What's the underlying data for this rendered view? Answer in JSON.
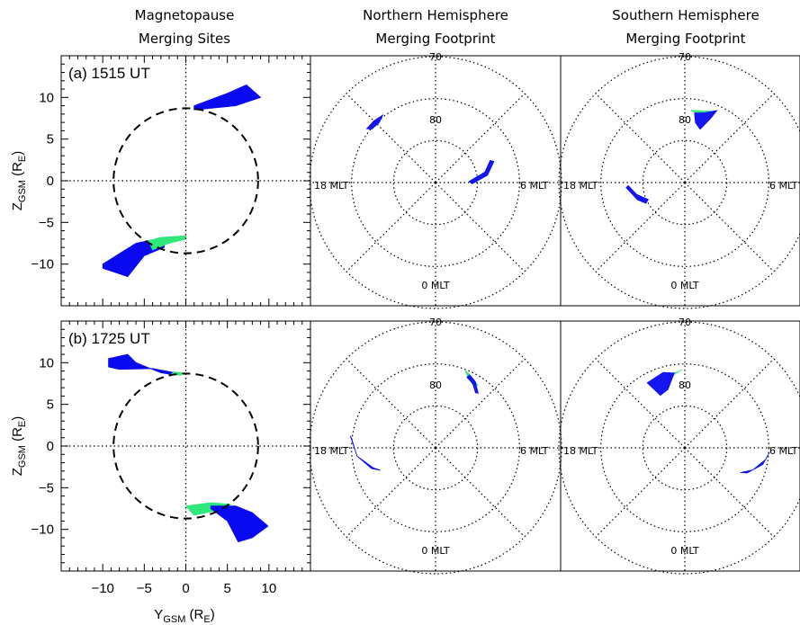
{
  "headers": {
    "col1": [
      "Magnetopause",
      "Merging Sites"
    ],
    "col2": [
      "Northern Hemisphere",
      "Merging Footprint"
    ],
    "col3": [
      "Southern Hemisphere",
      "Merging Footprint"
    ]
  },
  "axes": {
    "xlabel": {
      "main": "Y",
      "sub": "GSM",
      "unit_open": " (R",
      "unit_sub": "E",
      "unit_close": ")"
    },
    "ylabel": {
      "main": "Z",
      "sub": "GSM",
      "unit_open": " (R",
      "unit_sub": "E",
      "unit_close": ")"
    },
    "xticks": [
      -10,
      -5,
      0,
      5,
      10
    ],
    "yticks": [
      10,
      5,
      0,
      -5,
      -10
    ],
    "xlim": [
      -15,
      15
    ],
    "ylim": [
      -15,
      15
    ]
  },
  "polar_labels": {
    "rings": [
      "70",
      "80"
    ],
    "mlt": [
      "18 MLT",
      "6 MLT",
      "0 MLT"
    ]
  },
  "colors": {
    "merging_blue": "#0a0af0",
    "merging_green": "#2ee87a",
    "axis": "#000000"
  },
  "chart_data": [
    {
      "type": "scatter",
      "panel": "(a) 1515 UT",
      "title": "Magnetopause Merging Sites",
      "xlabel": "Y_GSM (R_E)",
      "ylabel": "Z_GSM (R_E)",
      "xlim": [
        -15,
        15
      ],
      "ylim": [
        -15,
        15
      ],
      "magnetopause_circle_radius": 8.7,
      "regions": [
        {
          "color": "blue",
          "polygon": [
            [
              1,
              9
            ],
            [
              5,
              10.5
            ],
            [
              7.3,
              11.5
            ],
            [
              9,
              10
            ],
            [
              6,
              9
            ],
            [
              1,
              8.5
            ]
          ]
        },
        {
          "color": "blue",
          "polygon": [
            [
              -10,
              -10
            ],
            [
              -6,
              -7.5
            ],
            [
              -2.6,
              -6.8
            ],
            [
              -2.6,
              -8.0
            ],
            [
              -5,
              -9
            ],
            [
              -7,
              -11.5
            ],
            [
              -10,
              -10.5
            ]
          ]
        },
        {
          "color": "green",
          "polygon": [
            [
              -4.5,
              -7.2
            ],
            [
              -3,
              -6.8
            ],
            [
              0,
              -6.6
            ],
            [
              0,
              -7.0
            ],
            [
              -2,
              -7.5
            ],
            [
              -4,
              -8.3
            ]
          ]
        }
      ]
    },
    {
      "type": "scatter",
      "panel": "Northern Hemisphere 1515 UT",
      "title": "Northern Hemisphere Merging Footprint",
      "rlim_deg": [
        60,
        90
      ],
      "regions": [
        {
          "color": "blue",
          "polygon": [
            [
              -52,
              69.2
            ],
            [
              -45,
              69.2
            ],
            [
              -38,
              69.6
            ],
            [
              -43,
              70.4
            ],
            [
              -50,
              70.2
            ]
          ]
        },
        {
          "color": "blue",
          "polygon": [
            [
              68,
              76
            ],
            [
              78,
              78
            ],
            [
              88,
              82
            ],
            [
              92,
              81.3
            ],
            [
              82,
              77.5
            ],
            [
              70,
              75.2
            ]
          ]
        }
      ]
    },
    {
      "type": "scatter",
      "panel": "Southern Hemisphere 1515 UT",
      "title": "Southern Hemisphere Merging Footprint",
      "rlim_deg": [
        60,
        90
      ],
      "regions": [
        {
          "color": "green",
          "polygon": [
            [
              5,
              72.7
            ],
            [
              12,
              72.5
            ],
            [
              20,
              71.9
            ],
            [
              17,
              72.7
            ],
            [
              10,
              73.3
            ]
          ]
        },
        {
          "color": "blue",
          "polygon": [
            [
              8,
              73.3
            ],
            [
              16,
              72.7
            ],
            [
              24,
              71.2
            ],
            [
              22,
              73.5
            ],
            [
              16,
              76.8
            ],
            [
              10,
              75.5
            ]
          ]
        },
        {
          "color": "blue",
          "polygon": [
            [
              -95,
              76
            ],
            [
              -110,
              78
            ],
            [
              -118,
              79.5
            ],
            [
              -115,
              80.4
            ],
            [
              -104,
              78.2
            ],
            [
              -93,
              76.5
            ]
          ]
        }
      ]
    },
    {
      "type": "scatter",
      "panel": "(b) 1725 UT",
      "title": "Magnetopause Merging Sites",
      "xlabel": "Y_GSM (R_E)",
      "ylabel": "Z_GSM (R_E)",
      "xlim": [
        -15,
        15
      ],
      "ylim": [
        -15,
        15
      ],
      "magnetopause_circle_radius": 8.7,
      "regions": [
        {
          "color": "blue",
          "polygon": [
            [
              -9.3,
              10.5
            ],
            [
              -7,
              11
            ],
            [
              -6,
              10
            ],
            [
              -3,
              8.8
            ],
            [
              -1.3,
              8.5
            ],
            [
              -1.3,
              8.8
            ],
            [
              -4,
              9.3
            ],
            [
              -8,
              9.2
            ],
            [
              -9.3,
              9.5
            ]
          ]
        },
        {
          "color": "green",
          "polygon": [
            [
              -1.8,
              8.6
            ],
            [
              -0.6,
              8.5
            ],
            [
              -0.4,
              8.8
            ],
            [
              -1.4,
              8.9
            ]
          ]
        },
        {
          "color": "green",
          "polygon": [
            [
              0,
              -7.2
            ],
            [
              3,
              -6.8
            ],
            [
              5.5,
              -7.0
            ],
            [
              3.5,
              -7.8
            ],
            [
              1,
              -8.3
            ]
          ]
        },
        {
          "color": "blue",
          "polygon": [
            [
              3,
              -7.2
            ],
            [
              6,
              -7.2
            ],
            [
              8,
              -8
            ],
            [
              9.9,
              -9.6
            ],
            [
              8,
              -11
            ],
            [
              6.3,
              -11.5
            ],
            [
              5,
              -9
            ],
            [
              3,
              -7.5
            ]
          ]
        }
      ]
    },
    {
      "type": "scatter",
      "panel": "Northern Hemisphere 1725 UT",
      "title": "Northern Hemisphere Merging Footprint",
      "rlim_deg": [
        60,
        90
      ],
      "regions": [
        {
          "color": "green",
          "polygon": [
            [
              21,
              70.2
            ],
            [
              28,
              71.2
            ],
            [
              34,
              72
            ],
            [
              30,
              72.4
            ],
            [
              24,
              71.4
            ]
          ]
        },
        {
          "color": "blue",
          "polygon": [
            [
              24,
              71.6
            ],
            [
              30,
              72.3
            ],
            [
              36,
              73.8
            ],
            [
              38,
              73.5
            ],
            [
              31,
              71.6
            ],
            [
              25,
              70.8
            ]
          ]
        },
        {
          "color": "blue",
          "polygon": [
            [
              -82,
              69.5
            ],
            [
              -96,
              71.2
            ],
            [
              -108,
              74
            ],
            [
              -112,
              75.8
            ],
            [
              -108,
              74.5
            ],
            [
              -96,
              71.2
            ],
            [
              -83,
              69.8
            ]
          ]
        }
      ]
    },
    {
      "type": "scatter",
      "panel": "Southern Hemisphere 1725 UT",
      "title": "Southern Hemisphere Merging Footprint",
      "rlim_deg": [
        60,
        90
      ],
      "regions": [
        {
          "color": "green",
          "polygon": [
            [
              -12,
              72.5
            ],
            [
              -2,
              71.3
            ],
            [
              -8,
              72.3
            ],
            [
              -16,
              73.5
            ]
          ]
        },
        {
          "color": "blue",
          "polygon": [
            [
              -30,
              72.1
            ],
            [
              -16,
              71.3
            ],
            [
              -8,
              72
            ],
            [
              -16,
              75.5
            ],
            [
              -25,
              76.2
            ]
          ]
        },
        {
          "color": "blue",
          "polygon": [
            [
              93,
              69.8
            ],
            [
              102,
              71
            ],
            [
              112,
              74
            ],
            [
              114,
              75.5
            ],
            [
              108,
              73
            ],
            [
              98,
              70.5
            ]
          ]
        }
      ]
    }
  ]
}
